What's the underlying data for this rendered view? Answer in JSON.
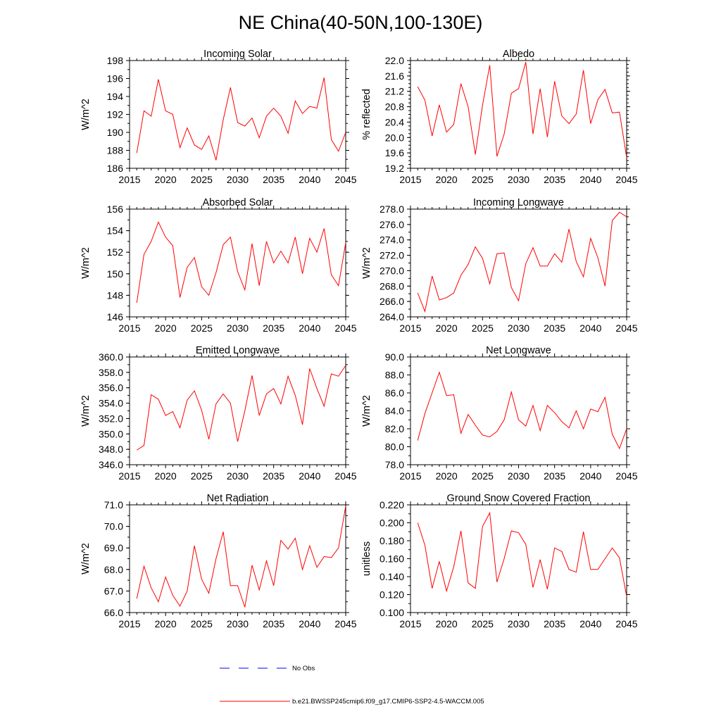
{
  "figure_title": "NE China(40-50N,100-130E)",
  "colors": {
    "model": "#ff0000",
    "obs": "#0000ff",
    "axes": "#000000"
  },
  "legend": {
    "obs_label": "No Obs",
    "model_label": "b.e21.BWSSP245cmip6.f09_g17.CMIP6-SSP2-4.5-WACCM.005"
  },
  "chart_data": [
    {
      "type": "line",
      "title": "Incoming Solar",
      "ylabel": "W/m^2",
      "xlabel": "",
      "xlim": [
        2015,
        2045
      ],
      "ylim": [
        186,
        198
      ],
      "x_ticks": [
        2015,
        2020,
        2025,
        2030,
        2035,
        2040,
        2045
      ],
      "y_ticks": [
        186,
        188,
        190,
        192,
        194,
        196,
        198
      ],
      "y_decimals": 0,
      "y_minor": 1,
      "x": [
        2016,
        2017,
        2018,
        2019,
        2020,
        2021,
        2022,
        2023,
        2024,
        2025,
        2026,
        2027,
        2028,
        2029,
        2030,
        2031,
        2032,
        2033,
        2034,
        2035,
        2036,
        2037,
        2038,
        2039,
        2040,
        2041,
        2042,
        2043,
        2044,
        2045
      ],
      "series": [
        {
          "name": "b.e21.BWSSP245cmip6.f09_g17.CMIP6-SSP2-4.5-WACCM.005",
          "values": [
            187.7,
            192.4,
            191.8,
            195.9,
            192.4,
            192.0,
            188.3,
            190.5,
            188.6,
            188.1,
            189.6,
            186.9,
            191.4,
            195.0,
            191.1,
            190.7,
            191.6,
            189.4,
            191.8,
            192.7,
            191.8,
            189.9,
            193.5,
            192.1,
            192.9,
            192.7,
            196.1,
            189.2,
            187.9,
            190.0
          ]
        }
      ]
    },
    {
      "type": "line",
      "title": "Albedo",
      "ylabel": "% reflected",
      "xlabel": "",
      "xlim": [
        2015,
        2045
      ],
      "ylim": [
        19.2,
        22.0
      ],
      "x_ticks": [
        2015,
        2020,
        2025,
        2030,
        2035,
        2040,
        2045
      ],
      "y_ticks": [
        19.2,
        19.6,
        20.0,
        20.4,
        20.8,
        21.2,
        21.6,
        22.0
      ],
      "y_decimals": 1,
      "y_minor": 0.1,
      "x": [
        2016,
        2017,
        2018,
        2019,
        2020,
        2021,
        2022,
        2023,
        2024,
        2025,
        2026,
        2027,
        2028,
        2029,
        2030,
        2031,
        2032,
        2033,
        2034,
        2035,
        2036,
        2037,
        2038,
        2039,
        2040,
        2041,
        2042,
        2043,
        2044,
        2045
      ],
      "series": [
        {
          "name": "b.e21.BWSSP245cmip6.f09_g17.CMIP6-SSP2-4.5-WACCM.005",
          "values": [
            21.32,
            20.97,
            20.04,
            20.85,
            20.14,
            20.34,
            21.4,
            20.8,
            19.56,
            20.84,
            21.88,
            19.51,
            20.09,
            21.15,
            21.27,
            21.96,
            20.09,
            21.27,
            20.01,
            21.46,
            20.56,
            20.36,
            20.61,
            21.75,
            20.36,
            20.98,
            21.25,
            20.64,
            20.66,
            19.48
          ]
        }
      ]
    },
    {
      "type": "line",
      "title": "Absorbed Solar",
      "ylabel": "W/m^2",
      "xlabel": "",
      "xlim": [
        2015,
        2045
      ],
      "ylim": [
        146,
        156
      ],
      "x_ticks": [
        2015,
        2020,
        2025,
        2030,
        2035,
        2040,
        2045
      ],
      "y_ticks": [
        146,
        148,
        150,
        152,
        154,
        156
      ],
      "y_decimals": 0,
      "y_minor": 1,
      "x": [
        2016,
        2017,
        2018,
        2019,
        2020,
        2021,
        2022,
        2023,
        2024,
        2025,
        2026,
        2027,
        2028,
        2029,
        2030,
        2031,
        2032,
        2033,
        2034,
        2035,
        2036,
        2037,
        2038,
        2039,
        2040,
        2041,
        2042,
        2043,
        2044,
        2045
      ],
      "series": [
        {
          "name": "b.e21.BWSSP245cmip6.f09_g17.CMIP6-SSP2-4.5-WACCM.005",
          "values": [
            147.3,
            151.8,
            153.0,
            154.8,
            153.4,
            152.6,
            147.8,
            150.6,
            151.5,
            148.8,
            148.0,
            150.1,
            152.7,
            153.4,
            150.2,
            148.5,
            152.8,
            148.9,
            153.0,
            151.0,
            152.1,
            151.0,
            153.4,
            150.0,
            153.3,
            152.0,
            154.2,
            149.9,
            148.9,
            152.9
          ]
        }
      ]
    },
    {
      "type": "line",
      "title": "Incoming Longwave",
      "ylabel": "W/m^2",
      "xlabel": "",
      "xlim": [
        2015,
        2045
      ],
      "ylim": [
        264,
        278
      ],
      "x_ticks": [
        2015,
        2020,
        2025,
        2030,
        2035,
        2040,
        2045
      ],
      "y_ticks": [
        264,
        266,
        268,
        270,
        272,
        274,
        276,
        278
      ],
      "y_decimals": 1,
      "y_minor": 1,
      "x": [
        2016,
        2017,
        2018,
        2019,
        2020,
        2021,
        2022,
        2023,
        2024,
        2025,
        2026,
        2027,
        2028,
        2029,
        2030,
        2031,
        2032,
        2033,
        2034,
        2035,
        2036,
        2037,
        2038,
        2039,
        2040,
        2041,
        2042,
        2043,
        2044,
        2045
      ],
      "series": [
        {
          "name": "b.e21.BWSSP245cmip6.f09_g17.CMIP6-SSP2-4.5-WACCM.005",
          "values": [
            267.1,
            264.7,
            269.3,
            266.2,
            266.5,
            267.1,
            269.4,
            270.8,
            273.1,
            271.6,
            268.3,
            272.2,
            272.3,
            267.8,
            266.1,
            270.9,
            273.0,
            270.6,
            270.6,
            272.2,
            271.1,
            275.4,
            271.2,
            269.2,
            274.2,
            271.7,
            268.0,
            276.5,
            277.6,
            277.0
          ]
        }
      ]
    },
    {
      "type": "line",
      "title": "Emitted Longwave",
      "ylabel": "W/m^2",
      "xlabel": "",
      "xlim": [
        2015,
        2045
      ],
      "ylim": [
        346,
        360
      ],
      "x_ticks": [
        2015,
        2020,
        2025,
        2030,
        2035,
        2040,
        2045
      ],
      "y_ticks": [
        346,
        348,
        350,
        352,
        354,
        356,
        358,
        360
      ],
      "y_decimals": 1,
      "y_minor": 1,
      "x": [
        2016,
        2017,
        2018,
        2019,
        2020,
        2021,
        2022,
        2023,
        2024,
        2025,
        2026,
        2027,
        2028,
        2029,
        2030,
        2031,
        2032,
        2033,
        2034,
        2035,
        2036,
        2037,
        2038,
        2039,
        2040,
        2041,
        2042,
        2043,
        2044,
        2045
      ],
      "series": [
        {
          "name": "b.e21.BWSSP245cmip6.f09_g17.CMIP6-SSP2-4.5-WACCM.005",
          "values": [
            347.9,
            348.5,
            355.1,
            354.5,
            352.4,
            352.9,
            350.8,
            354.4,
            355.6,
            353.1,
            349.3,
            353.9,
            355.2,
            354.0,
            349.0,
            353.0,
            357.6,
            352.4,
            355.2,
            355.9,
            353.9,
            357.5,
            355.0,
            351.2,
            358.5,
            355.9,
            353.6,
            357.8,
            357.5,
            358.9
          ]
        }
      ]
    },
    {
      "type": "line",
      "title": "Net Longwave",
      "ylabel": "W/m^2",
      "xlabel": "",
      "xlim": [
        2015,
        2045
      ],
      "ylim": [
        78,
        90
      ],
      "x_ticks": [
        2015,
        2020,
        2025,
        2030,
        2035,
        2040,
        2045
      ],
      "y_ticks": [
        78,
        80,
        82,
        84,
        86,
        88,
        90
      ],
      "y_decimals": 1,
      "y_minor": 1,
      "x": [
        2016,
        2017,
        2018,
        2019,
        2020,
        2021,
        2022,
        2023,
        2024,
        2025,
        2026,
        2027,
        2028,
        2029,
        2030,
        2031,
        2032,
        2033,
        2034,
        2035,
        2036,
        2037,
        2038,
        2039,
        2040,
        2041,
        2042,
        2043,
        2044,
        2045
      ],
      "series": [
        {
          "name": "b.e21.BWSSP245cmip6.f09_g17.CMIP6-SSP2-4.5-WACCM.005",
          "values": [
            80.7,
            83.7,
            86.0,
            88.3,
            85.7,
            85.8,
            81.5,
            83.6,
            82.4,
            81.3,
            81.1,
            81.7,
            83.0,
            86.1,
            83.0,
            82.3,
            84.6,
            81.8,
            84.6,
            83.8,
            82.8,
            82.1,
            84.0,
            82.0,
            84.2,
            83.9,
            85.5,
            81.4,
            79.8,
            82.0
          ]
        }
      ]
    },
    {
      "type": "line",
      "title": "Net Radiation",
      "ylabel": "W/m^2",
      "xlabel": "",
      "xlim": [
        2015,
        2045
      ],
      "ylim": [
        66,
        71
      ],
      "x_ticks": [
        2015,
        2020,
        2025,
        2030,
        2035,
        2040,
        2045
      ],
      "y_ticks": [
        66,
        67,
        68,
        69,
        70,
        71
      ],
      "y_decimals": 1,
      "y_minor": 0.5,
      "x": [
        2016,
        2017,
        2018,
        2019,
        2020,
        2021,
        2022,
        2023,
        2024,
        2025,
        2026,
        2027,
        2028,
        2029,
        2030,
        2031,
        2032,
        2033,
        2034,
        2035,
        2036,
        2037,
        2038,
        2039,
        2040,
        2041,
        2042,
        2043,
        2044,
        2045
      ],
      "series": [
        {
          "name": "b.e21.BWSSP245cmip6.f09_g17.CMIP6-SSP2-4.5-WACCM.005",
          "values": [
            66.65,
            68.15,
            67.15,
            66.5,
            67.65,
            66.8,
            66.3,
            67.0,
            69.1,
            67.55,
            66.9,
            68.5,
            69.75,
            67.25,
            67.25,
            66.25,
            68.2,
            67.05,
            68.4,
            67.25,
            69.35,
            68.95,
            69.45,
            68.0,
            69.1,
            68.1,
            68.6,
            68.55,
            69.0,
            70.95
          ]
        }
      ]
    },
    {
      "type": "line",
      "title": "Ground Snow Covered Fraction",
      "ylabel": "unitless",
      "xlabel": "",
      "xlim": [
        2015,
        2045
      ],
      "ylim": [
        0.1,
        0.22
      ],
      "x_ticks": [
        2015,
        2020,
        2025,
        2030,
        2035,
        2040,
        2045
      ],
      "y_ticks": [
        0.1,
        0.12,
        0.14,
        0.16,
        0.18,
        0.2,
        0.22
      ],
      "y_decimals": 3,
      "y_minor": 0.01,
      "x": [
        2016,
        2017,
        2018,
        2019,
        2020,
        2021,
        2022,
        2023,
        2024,
        2025,
        2026,
        2027,
        2028,
        2029,
        2030,
        2031,
        2032,
        2033,
        2034,
        2035,
        2036,
        2037,
        2038,
        2039,
        2040,
        2041,
        2042,
        2043,
        2044,
        2045
      ],
      "series": [
        {
          "name": "b.e21.BWSSP245cmip6.f09_g17.CMIP6-SSP2-4.5-WACCM.005",
          "values": [
            0.2,
            0.175,
            0.127,
            0.157,
            0.124,
            0.151,
            0.191,
            0.133,
            0.127,
            0.196,
            0.211,
            0.134,
            0.16,
            0.191,
            0.189,
            0.176,
            0.128,
            0.159,
            0.126,
            0.172,
            0.168,
            0.148,
            0.145,
            0.19,
            0.148,
            0.148,
            0.16,
            0.172,
            0.161,
            0.118
          ]
        }
      ]
    }
  ]
}
